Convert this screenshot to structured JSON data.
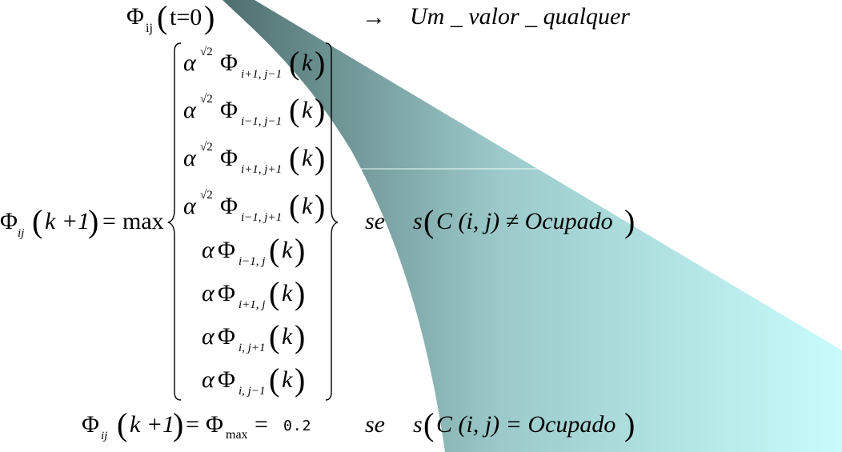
{
  "bg": {
    "colors": [
      "#4e6e6e",
      "#9ccaca",
      "#c8fcfc"
    ]
  },
  "init": {
    "phi": "Φ",
    "sub": "ij",
    "arg": "t=0",
    "arrow": "→",
    "text": "Um _ valor _ qualquer"
  },
  "main": {
    "lhs_phi": "Φ",
    "lhs_sub": "ij",
    "lhs_arg": "k +1",
    "equals": "=",
    "max": "max",
    "brace_open": "{",
    "brace_close": "}",
    "rows": [
      {
        "coef": "α",
        "power": "√2",
        "phi": "Φ",
        "sub": "i+1, j−1",
        "arg": "k"
      },
      {
        "coef": "α",
        "power": "√2",
        "phi": "Φ",
        "sub": "i−1, j−1",
        "arg": "k"
      },
      {
        "coef": "α",
        "power": "√2",
        "phi": "Φ",
        "sub": "i+1, j+1",
        "arg": "k"
      },
      {
        "coef": "α",
        "power": "√2",
        "phi": "Φ",
        "sub": "i−1, j+1",
        "arg": "k"
      },
      {
        "coef": "α",
        "power": "",
        "phi": "Φ",
        "sub": "i−1, j",
        "arg": "k"
      },
      {
        "coef": "α",
        "power": "",
        "phi": "Φ",
        "sub": "i+1, j",
        "arg": "k"
      },
      {
        "coef": "α",
        "power": "",
        "phi": "Φ",
        "sub": "i, j+1",
        "arg": "k"
      },
      {
        "coef": "α",
        "power": "",
        "phi": "Φ",
        "sub": "i, j−1",
        "arg": "k"
      }
    ],
    "se": "se",
    "cond_s": "s",
    "cond_inner": "C (i, j) ≠ Ocupado"
  },
  "occupied": {
    "lhs_phi": "Φ",
    "lhs_sub": "ij",
    "lhs_arg": "k +1",
    "equals": "=",
    "phi": "Φ",
    "sub": "max",
    "equals2": "=",
    "value": "0.2",
    "se": "se",
    "cond_s": "s",
    "cond_inner": "C (i, j) = Ocupado"
  }
}
